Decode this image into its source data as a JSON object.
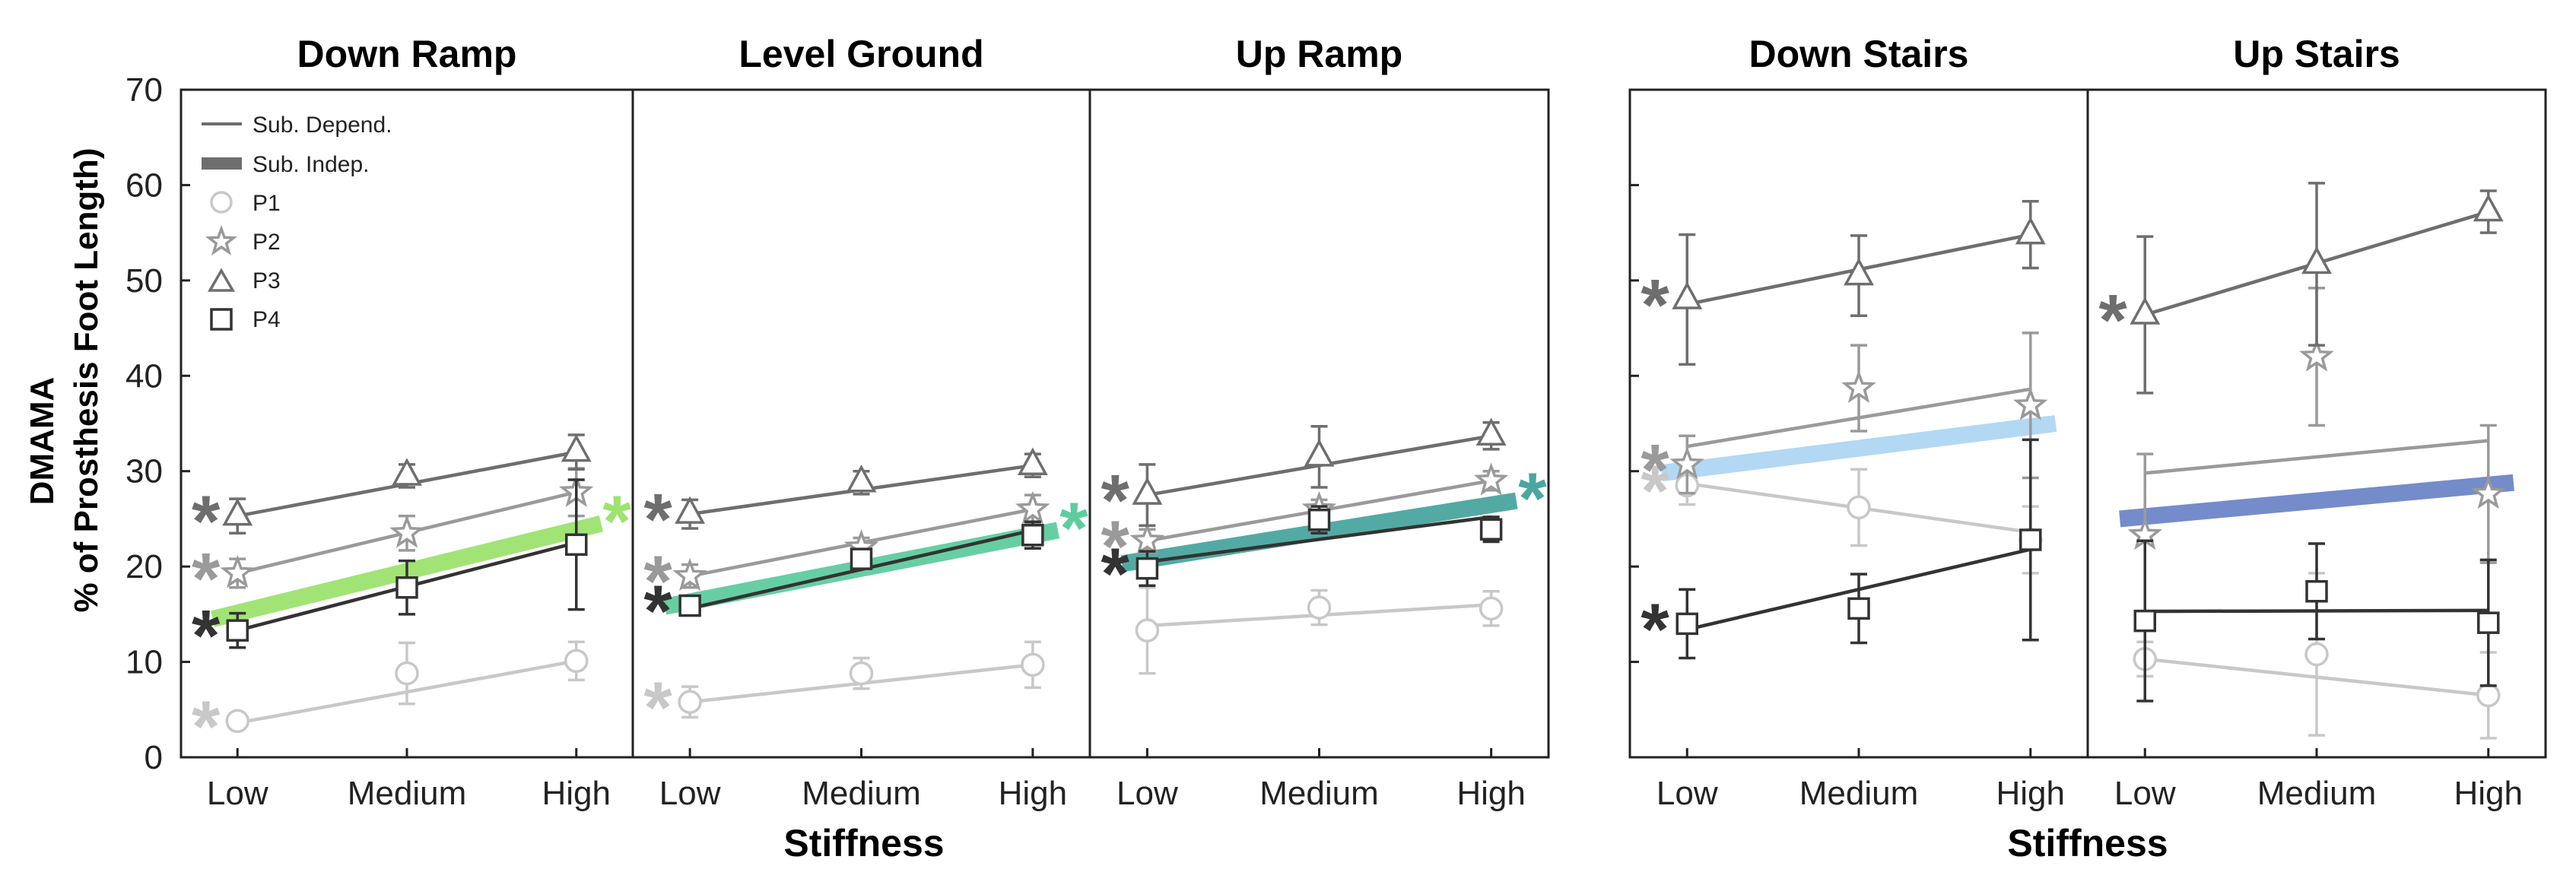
{
  "chart_data": {
    "type": "line",
    "ylabel": "DMAMA",
    "ylabel2": "% of Prosthesis Foot Length)",
    "xlabel": "Stiffness",
    "categories": [
      "Low",
      "Medium",
      "High"
    ],
    "yticks": [
      "0",
      "10",
      "20",
      "30",
      "40",
      "50",
      "60",
      "70"
    ],
    "ylim": [
      0,
      70
    ],
    "legend": {
      "position": "top-left",
      "entries": [
        {
          "key": "dep",
          "label": "Sub. Depend."
        },
        {
          "key": "indep",
          "label": "Sub. Indep."
        },
        {
          "key": "P1",
          "label": "P1"
        },
        {
          "key": "P2",
          "label": "P2"
        },
        {
          "key": "P3",
          "label": "P3"
        },
        {
          "key": "P4",
          "label": "P4"
        }
      ]
    },
    "participant_colors": {
      "P1": "#c8c8c8",
      "P2": "#9a9a9a",
      "P3": "#6e6e6e",
      "P4": "#333333"
    },
    "panels": [
      {
        "title": "Down Ramp",
        "independent": {
          "start": 14.5,
          "end": 24.5,
          "color": "#9de36e"
        },
        "sig_star": {
          "text": "*",
          "color": "#9de36e"
        },
        "series": [
          {
            "name": "P1",
            "marker": "circle",
            "values": [
              3.8,
              8.8,
              10.1
            ],
            "errors": [
              0.8,
              3.2,
              2.0
            ],
            "fit": [
              3.6,
              10.1
            ],
            "asterisk": "*"
          },
          {
            "name": "P2",
            "marker": "star",
            "values": [
              19.3,
              23.5,
              27.8
            ],
            "errors": [
              1.5,
              1.8,
              2.5
            ],
            "fit": [
              19.3,
              27.8
            ],
            "asterisk": "*"
          },
          {
            "name": "P3",
            "marker": "triangle",
            "values": [
              25.3,
              29.5,
              32.0
            ],
            "errors": [
              1.8,
              1.2,
              1.8
            ],
            "fit": [
              25.3,
              32.0
            ],
            "asterisk": "*"
          },
          {
            "name": "P4",
            "marker": "square",
            "values": [
              13.3,
              17.8,
              22.3
            ],
            "errors": [
              1.8,
              2.8,
              6.8
            ],
            "fit": [
              13.3,
              22.5
            ],
            "asterisk": "*"
          }
        ]
      },
      {
        "title": "Level Ground",
        "independent": {
          "start": 15.8,
          "end": 23.8,
          "color": "#5fcca0"
        },
        "sig_star": {
          "text": "*",
          "color": "#5fcca0"
        },
        "series": [
          {
            "name": "P1",
            "marker": "circle",
            "values": [
              5.8,
              8.8,
              9.7
            ],
            "errors": [
              1.6,
              1.6,
              2.4
            ],
            "fit": [
              5.8,
              9.7
            ],
            "asterisk": "*"
          },
          {
            "name": "P2",
            "marker": "star",
            "values": [
              19.0,
              22.0,
              26.0
            ],
            "errors": [
              1.2,
              1.0,
              1.5
            ],
            "fit": [
              19.0,
              26.0
            ],
            "asterisk": "*"
          },
          {
            "name": "P3",
            "marker": "triangle",
            "values": [
              25.5,
              28.8,
              30.6
            ],
            "errors": [
              1.5,
              1.2,
              1.2
            ],
            "fit": [
              25.5,
              30.6
            ],
            "asterisk": "*"
          },
          {
            "name": "P4",
            "marker": "square",
            "values": [
              15.9,
              20.8,
              23.3
            ],
            "errors": [
              0.7,
              0.6,
              1.4
            ],
            "fit": [
              15.6,
              23.8
            ],
            "asterisk": "*"
          }
        ]
      },
      {
        "title": "Up Ramp",
        "independent": {
          "start": 20.3,
          "end": 26.9,
          "color": "#4aa6a0"
        },
        "sig_star": {
          "text": "*",
          "color": "#4aa6a0"
        },
        "series": [
          {
            "name": "P1",
            "marker": "circle",
            "values": [
              13.3,
              15.7,
              15.6
            ],
            "errors": [
              4.5,
              1.8,
              1.8
            ],
            "fit": [
              13.8,
              16.0
            ],
            "asterisk": ""
          },
          {
            "name": "P2",
            "marker": "star",
            "values": [
              22.7,
              26.0,
              29.0
            ],
            "errors": [
              1.2,
              1.0,
              1.0
            ],
            "fit": [
              22.7,
              29.0
            ],
            "asterisk": "*"
          },
          {
            "name": "P3",
            "marker": "triangle",
            "values": [
              27.5,
              31.5,
              33.7
            ],
            "errors": [
              3.2,
              3.2,
              1.4
            ],
            "fit": [
              27.5,
              33.7
            ],
            "asterisk": "*"
          },
          {
            "name": "P4",
            "marker": "square",
            "values": [
              19.8,
              24.9,
              23.9
            ],
            "errors": [
              1.8,
              1.4,
              1.3
            ],
            "fit": [
              20.5,
              25.2
            ],
            "asterisk": "*"
          }
        ]
      },
      {
        "title": "Down Stairs",
        "independent": {
          "start": 29.8,
          "end": 35.0,
          "color": "#aed6f4"
        },
        "sig_star": null,
        "series": [
          {
            "name": "P1",
            "marker": "circle",
            "values": [
              28.5,
              26.2,
              22.8
            ],
            "errors": [
              2.0,
              4.0,
              3.5
            ],
            "fit": [
              28.7,
              23.6
            ],
            "asterisk": "*"
          },
          {
            "name": "P2",
            "marker": "star",
            "values": [
              30.7,
              38.7,
              36.9
            ],
            "errors": [
              3.0,
              4.5,
              7.6
            ],
            "fit": [
              32.6,
              38.6
            ],
            "asterisk": "*"
          },
          {
            "name": "P3",
            "marker": "triangle",
            "values": [
              48.0,
              50.5,
              54.8
            ],
            "errors": [
              6.8,
              4.2,
              3.5
            ],
            "fit": [
              47.5,
              54.8
            ],
            "asterisk": "*"
          },
          {
            "name": "P4",
            "marker": "square",
            "values": [
              14.0,
              15.6,
              22.8
            ],
            "errors": [
              3.6,
              3.6,
              10.5
            ],
            "fit": [
              13.4,
              21.8
            ],
            "asterisk": "*"
          }
        ]
      },
      {
        "title": "Up Stairs",
        "independent": {
          "start": 25.0,
          "end": 28.8,
          "color": "#6e86c8"
        },
        "sig_star": null,
        "series": [
          {
            "name": "P1",
            "marker": "circle",
            "values": [
              10.3,
              10.8,
              6.5
            ],
            "errors": [
              1.8,
              8.5,
              4.5
            ],
            "fit": [
              10.3,
              6.5
            ],
            "asterisk": ""
          },
          {
            "name": "P2",
            "marker": "star",
            "values": [
              23.3,
              42.0,
              27.6
            ],
            "errors": [
              8.5,
              7.2,
              7.2
            ],
            "fit": [
              29.8,
              33.2
            ],
            "asterisk": ""
          },
          {
            "name": "P3",
            "marker": "triangle",
            "values": [
              46.4,
              51.7,
              57.2
            ],
            "errors": [
              8.2,
              8.5,
              2.2
            ],
            "fit": [
              46.4,
              57.2
            ],
            "asterisk": "*"
          },
          {
            "name": "P4",
            "marker": "square",
            "values": [
              14.3,
              17.4,
              14.1
            ],
            "errors": [
              8.4,
              5.0,
              6.6
            ],
            "fit": [
              15.3,
              15.4
            ],
            "asterisk": ""
          }
        ]
      }
    ]
  }
}
